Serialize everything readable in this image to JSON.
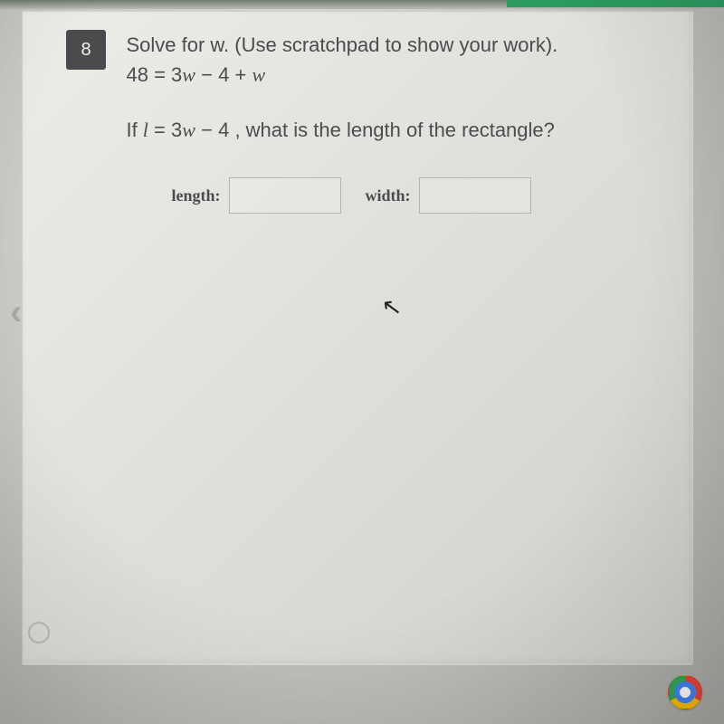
{
  "question": {
    "number": "8",
    "prompt_line1": "Solve for w. (Use scratchpad to show your work).",
    "equation": "48 = 3w − 4 + w",
    "equation_parts": {
      "lhs": "48",
      "eq": "=",
      "c1": "3",
      "v1": "w",
      "op1": "−",
      "c2": "4",
      "op2": "+",
      "v2": "w"
    },
    "second_prompt_prefix": "If ",
    "second_eq_parts": {
      "v0": "l",
      "eq": "=",
      "c1": "3",
      "v1": "w",
      "op1": "−",
      "c2": "4"
    },
    "second_prompt_suffix": " , what is the length of the rectangle?"
  },
  "answers": {
    "length_label": "length:",
    "length_value": "",
    "width_label": "width:",
    "width_value": ""
  },
  "style": {
    "qnum_bg": "#4a4b4c",
    "qnum_fg": "#f3f2ee",
    "text_color": "#4a4b4c",
    "card_bg_from": "#eeece8",
    "card_bg_to": "#d3d1cd",
    "input_border": "#b6b4b0",
    "chevron_color": "#a9a7a3",
    "accent_green": "#2b9b5f",
    "font_size_body": 22,
    "font_size_label": 18
  }
}
